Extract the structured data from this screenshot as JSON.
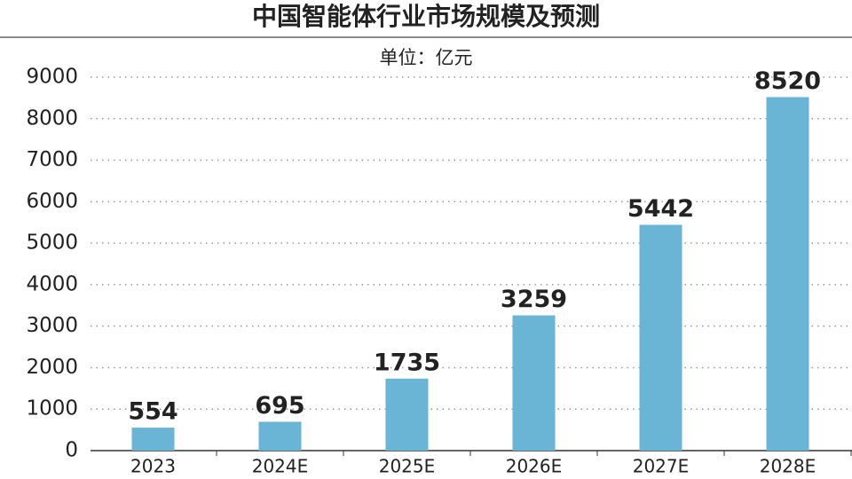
{
  "chart_data": {
    "type": "bar",
    "title": "中国智能体行业市场规模及预测",
    "subtitle": "单位：亿元",
    "categories": [
      "2023",
      "2024E",
      "2025E",
      "2026E",
      "2027E",
      "2028E"
    ],
    "values": [
      554,
      695,
      1735,
      3259,
      5442,
      8520
    ],
    "color": "#6ab4d6",
    "ylim": [
      0,
      9000
    ],
    "yticks": [
      0,
      1000,
      2000,
      3000,
      4000,
      5000,
      6000,
      7000,
      8000,
      9000
    ],
    "grid": true
  }
}
